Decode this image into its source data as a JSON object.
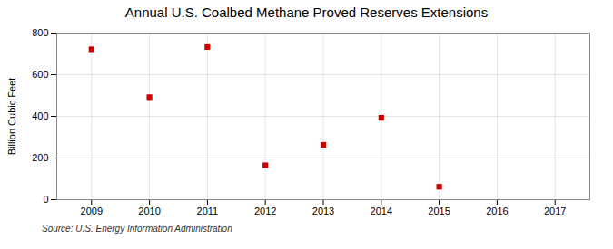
{
  "chart_data": {
    "type": "scatter",
    "title": "Annual U.S. Coalbed Methane Proved Reserves Extensions",
    "ylabel": "Billion Cubic Feet",
    "source": "Source: U.S. Energy Information Administration",
    "x": [
      2009,
      2010,
      2011,
      2012,
      2013,
      2014,
      2015
    ],
    "values": [
      722,
      492,
      733,
      165,
      263,
      393,
      62
    ],
    "xlim": [
      2008.4,
      2017.6
    ],
    "ylim": [
      0,
      800
    ],
    "xticks": [
      2009,
      2010,
      2011,
      2012,
      2013,
      2014,
      2015,
      2016,
      2017
    ],
    "yticks": [
      0,
      200,
      400,
      600,
      800
    ],
    "color": "#cc0000",
    "marker": "square",
    "grid": true
  }
}
